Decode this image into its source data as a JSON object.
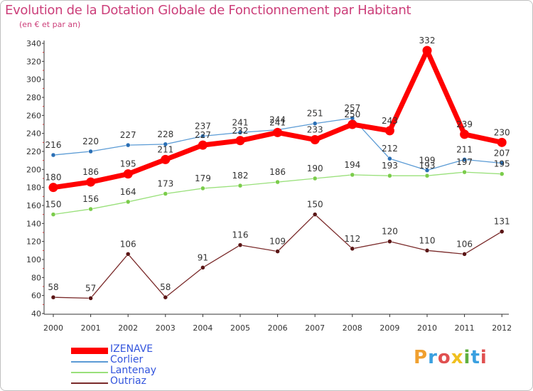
{
  "title": "Evolution de la Dotation Globale de Fonctionnement par Habitant",
  "subtitle": "(en € et par an)",
  "brand": "Proxiti",
  "chart_data": {
    "type": "line",
    "title": "Evolution de la Dotation Globale de Fonctionnement par Habitant",
    "subtitle": "(en € et par an)",
    "xlabel": "",
    "ylabel": "",
    "ylim": [
      40,
      340
    ],
    "ytick_step": 20,
    "grid": false,
    "legend": "bottom-left",
    "x": [
      "2000",
      "2001",
      "2002",
      "2003",
      "2004",
      "2005",
      "2006",
      "2007",
      "2008",
      "2009",
      "2010",
      "2011",
      "2012"
    ],
    "series": [
      {
        "name": "IZENAVE",
        "color": "#ff0000",
        "values": [
          180,
          186,
          195,
          211,
          227,
          232,
          241,
          233,
          250,
          243,
          332,
          239,
          230
        ]
      },
      {
        "name": "Corlier",
        "color": "#5b9bd5",
        "marker": "#2a6fb5",
        "values": [
          216,
          220,
          227,
          228,
          237,
          241,
          244,
          251,
          257,
          212,
          199,
          211,
          207
        ]
      },
      {
        "name": "Lantenay",
        "color": "#99e07a",
        "marker": "#7acc4a",
        "values": [
          150,
          156,
          164,
          173,
          179,
          182,
          186,
          190,
          194,
          193,
          193,
          197,
          195
        ]
      },
      {
        "name": "Outriaz",
        "color": "#7a2a2a",
        "marker": "#5a1515",
        "values": [
          58,
          57,
          106,
          58,
          91,
          116,
          109,
          150,
          112,
          120,
          110,
          106,
          131
        ]
      }
    ]
  }
}
